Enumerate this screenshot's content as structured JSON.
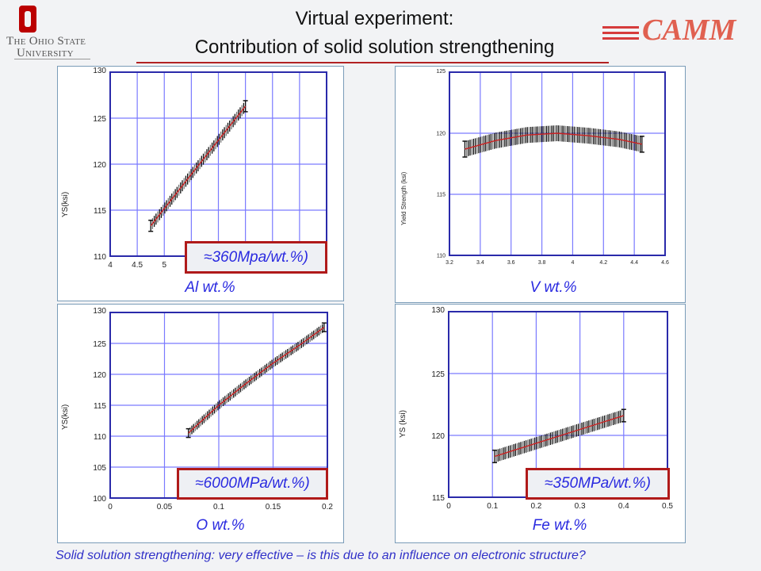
{
  "header": {
    "title_line1": "Virtual experiment:",
    "title_line2": "Contribution of solid solution strengthening",
    "university_line1": "The Ohio State",
    "university_line2": "University",
    "lab_logo": "CAMM"
  },
  "footer": "Solid solution strengthening: very effective – is this due to an influence on electronic structure?",
  "colors": {
    "grid": "#7a7aff",
    "axis": "#2a2aaa",
    "fit": "#cc2222",
    "errorbar": "#111111",
    "annotation_border": "#b01a1a",
    "label": "#2a2ae0"
  },
  "chart_data": [
    {
      "type": "line",
      "title": "",
      "xlabel": "Al wt.%",
      "ylabel": "YS(ksi)",
      "xlim": [
        4,
        8
      ],
      "ylim": [
        110,
        130
      ],
      "xticks": [
        4,
        4.5,
        5,
        5.5,
        6,
        6.5,
        7,
        7.5,
        8
      ],
      "yticks": [
        110,
        115,
        120,
        125,
        130
      ],
      "xtick_labels": [
        "4",
        "4.5",
        "5",
        "",
        "",
        "",
        "",
        "",
        ""
      ],
      "ytick_labels": [
        "110",
        "115",
        "120",
        "125",
        "130"
      ],
      "series": [
        {
          "name": "YS",
          "x": [
            4.75,
            5.5,
            6.0,
            6.5
          ],
          "y": [
            113.3,
            118.9,
            122.6,
            126.3
          ],
          "error": 0.6
        }
      ],
      "annotation": "≈360Mpa/wt.%)",
      "grid": true
    },
    {
      "type": "line",
      "title": "",
      "xlabel": "V wt.%",
      "ylabel": "Yield Strength (ksi)",
      "xlim": [
        3.2,
        4.6
      ],
      "ylim": [
        110,
        125
      ],
      "xticks": [
        3.2,
        3.4,
        3.6,
        3.8,
        4,
        4.2,
        4.4,
        4.6
      ],
      "yticks": [
        110,
        115,
        120,
        125
      ],
      "xtick_labels": [
        "3.2",
        "3.4",
        "3.6",
        "3.8",
        "4",
        "4.2",
        "4.4",
        "4.6"
      ],
      "ytick_labels": [
        "110",
        "115",
        "120",
        "125"
      ],
      "series": [
        {
          "name": "YS",
          "x": [
            3.3,
            3.5,
            3.7,
            3.9,
            4.1,
            4.3,
            4.45
          ],
          "y": [
            118.7,
            119.4,
            119.85,
            120.0,
            119.8,
            119.5,
            119.1
          ],
          "error": 0.65
        }
      ],
      "annotation": "",
      "grid": true
    },
    {
      "type": "line",
      "title": "",
      "xlabel": "O wt.%",
      "ylabel": "YS(ksi)",
      "xlim": [
        0,
        0.2
      ],
      "ylim": [
        100,
        130
      ],
      "xticks": [
        0,
        0.05,
        0.1,
        0.15,
        0.2
      ],
      "yticks": [
        100,
        105,
        110,
        115,
        120,
        125,
        130
      ],
      "xtick_labels": [
        "0",
        "0.05",
        "0.1",
        "0.15",
        "0.2"
      ],
      "ytick_labels": [
        "100",
        "105",
        "110",
        "115",
        "120",
        "125",
        "130"
      ],
      "series": [
        {
          "name": "YS",
          "x": [
            0.072,
            0.1,
            0.125,
            0.15,
            0.175,
            0.197
          ],
          "y": [
            110.5,
            115.0,
            118.5,
            121.8,
            124.8,
            127.6
          ],
          "error": 0.7
        }
      ],
      "annotation": "≈6000MPa/wt.%)",
      "grid": true
    },
    {
      "type": "line",
      "title": "",
      "xlabel": "Fe wt.%",
      "ylabel": "YS (ksi)",
      "xlim": [
        0,
        0.5
      ],
      "ylim": [
        115,
        130
      ],
      "xticks": [
        0,
        0.1,
        0.2,
        0.3,
        0.4,
        0.5
      ],
      "yticks": [
        115,
        120,
        125,
        130
      ],
      "xtick_labels": [
        "0",
        "0.1",
        "0.2",
        "0.3",
        "0.4",
        "0.5"
      ],
      "ytick_labels": [
        "115",
        "120",
        "125",
        "130"
      ],
      "series": [
        {
          "name": "YS",
          "x": [
            0.105,
            0.4
          ],
          "y": [
            118.3,
            121.6
          ],
          "error": 0.5
        }
      ],
      "annotation": "≈350MPa/wt.%)",
      "grid": true
    }
  ]
}
